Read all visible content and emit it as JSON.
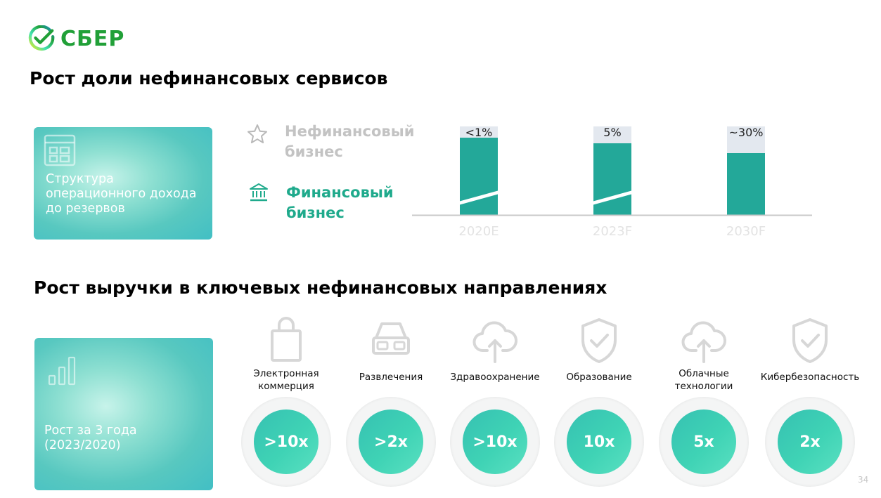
{
  "logo": {
    "word": "СБЕР"
  },
  "titles": {
    "share": "Рост доли нефинансовых сервисов",
    "revenue": "Рост выручки в ключевых нефинансовых направлениях"
  },
  "cards": {
    "structure": "Структура операционного дохода до резервов",
    "growth_line1": "Рост за 3 года",
    "growth_line2": "(2023/2020)"
  },
  "legend": {
    "nonfin_line1": "Нефинансовый",
    "nonfin_line2": "бизнес",
    "fin_line1": "Финансовый",
    "fin_line2": "бизнес",
    "nonfin_icon": "star-icon",
    "fin_icon": "bank-icon"
  },
  "colors": {
    "financial": "#23a899",
    "nonfinancial": "#e3e8ef",
    "brand": "#21a038",
    "teal_text": "#1faa8c"
  },
  "chart_data": {
    "type": "bar",
    "stacked": true,
    "normalized": true,
    "categories": [
      "2020E",
      "2023F",
      "2030F"
    ],
    "series": [
      {
        "name": "Финансовый бизнес",
        "values": [
          99,
          95,
          70
        ]
      },
      {
        "name": "Нефинансовый бизнес",
        "values": [
          1,
          5,
          30
        ],
        "labels": [
          "<1%",
          "5%",
          "~30%"
        ]
      }
    ],
    "axis_breaks": [
      true,
      true,
      false
    ],
    "ylim": [
      0,
      100
    ],
    "grid": false,
    "legend_position": "left"
  },
  "categories": [
    {
      "label_line1": "Электронная",
      "label_line2": "коммерция",
      "value": ">10x",
      "icon": "shopping-bag-icon"
    },
    {
      "label_line1": "Развлечения",
      "label_line2": "",
      "value": ">2x",
      "icon": "vr-glasses-icon"
    },
    {
      "label_line1": "Здравоохранение",
      "label_line2": "",
      "value": ">10x",
      "icon": "cloud-upload-icon"
    },
    {
      "label_line1": "Образование",
      "label_line2": "",
      "value": "10x",
      "icon": "shield-check-icon"
    },
    {
      "label_line1": "Облачные",
      "label_line2": "технологии",
      "value": "5x",
      "icon": "cloud-upload-icon"
    },
    {
      "label_line1": "Кибербезопасность",
      "label_line2": "",
      "value": "2x",
      "icon": "shield-check-icon"
    }
  ],
  "page_number": "34"
}
